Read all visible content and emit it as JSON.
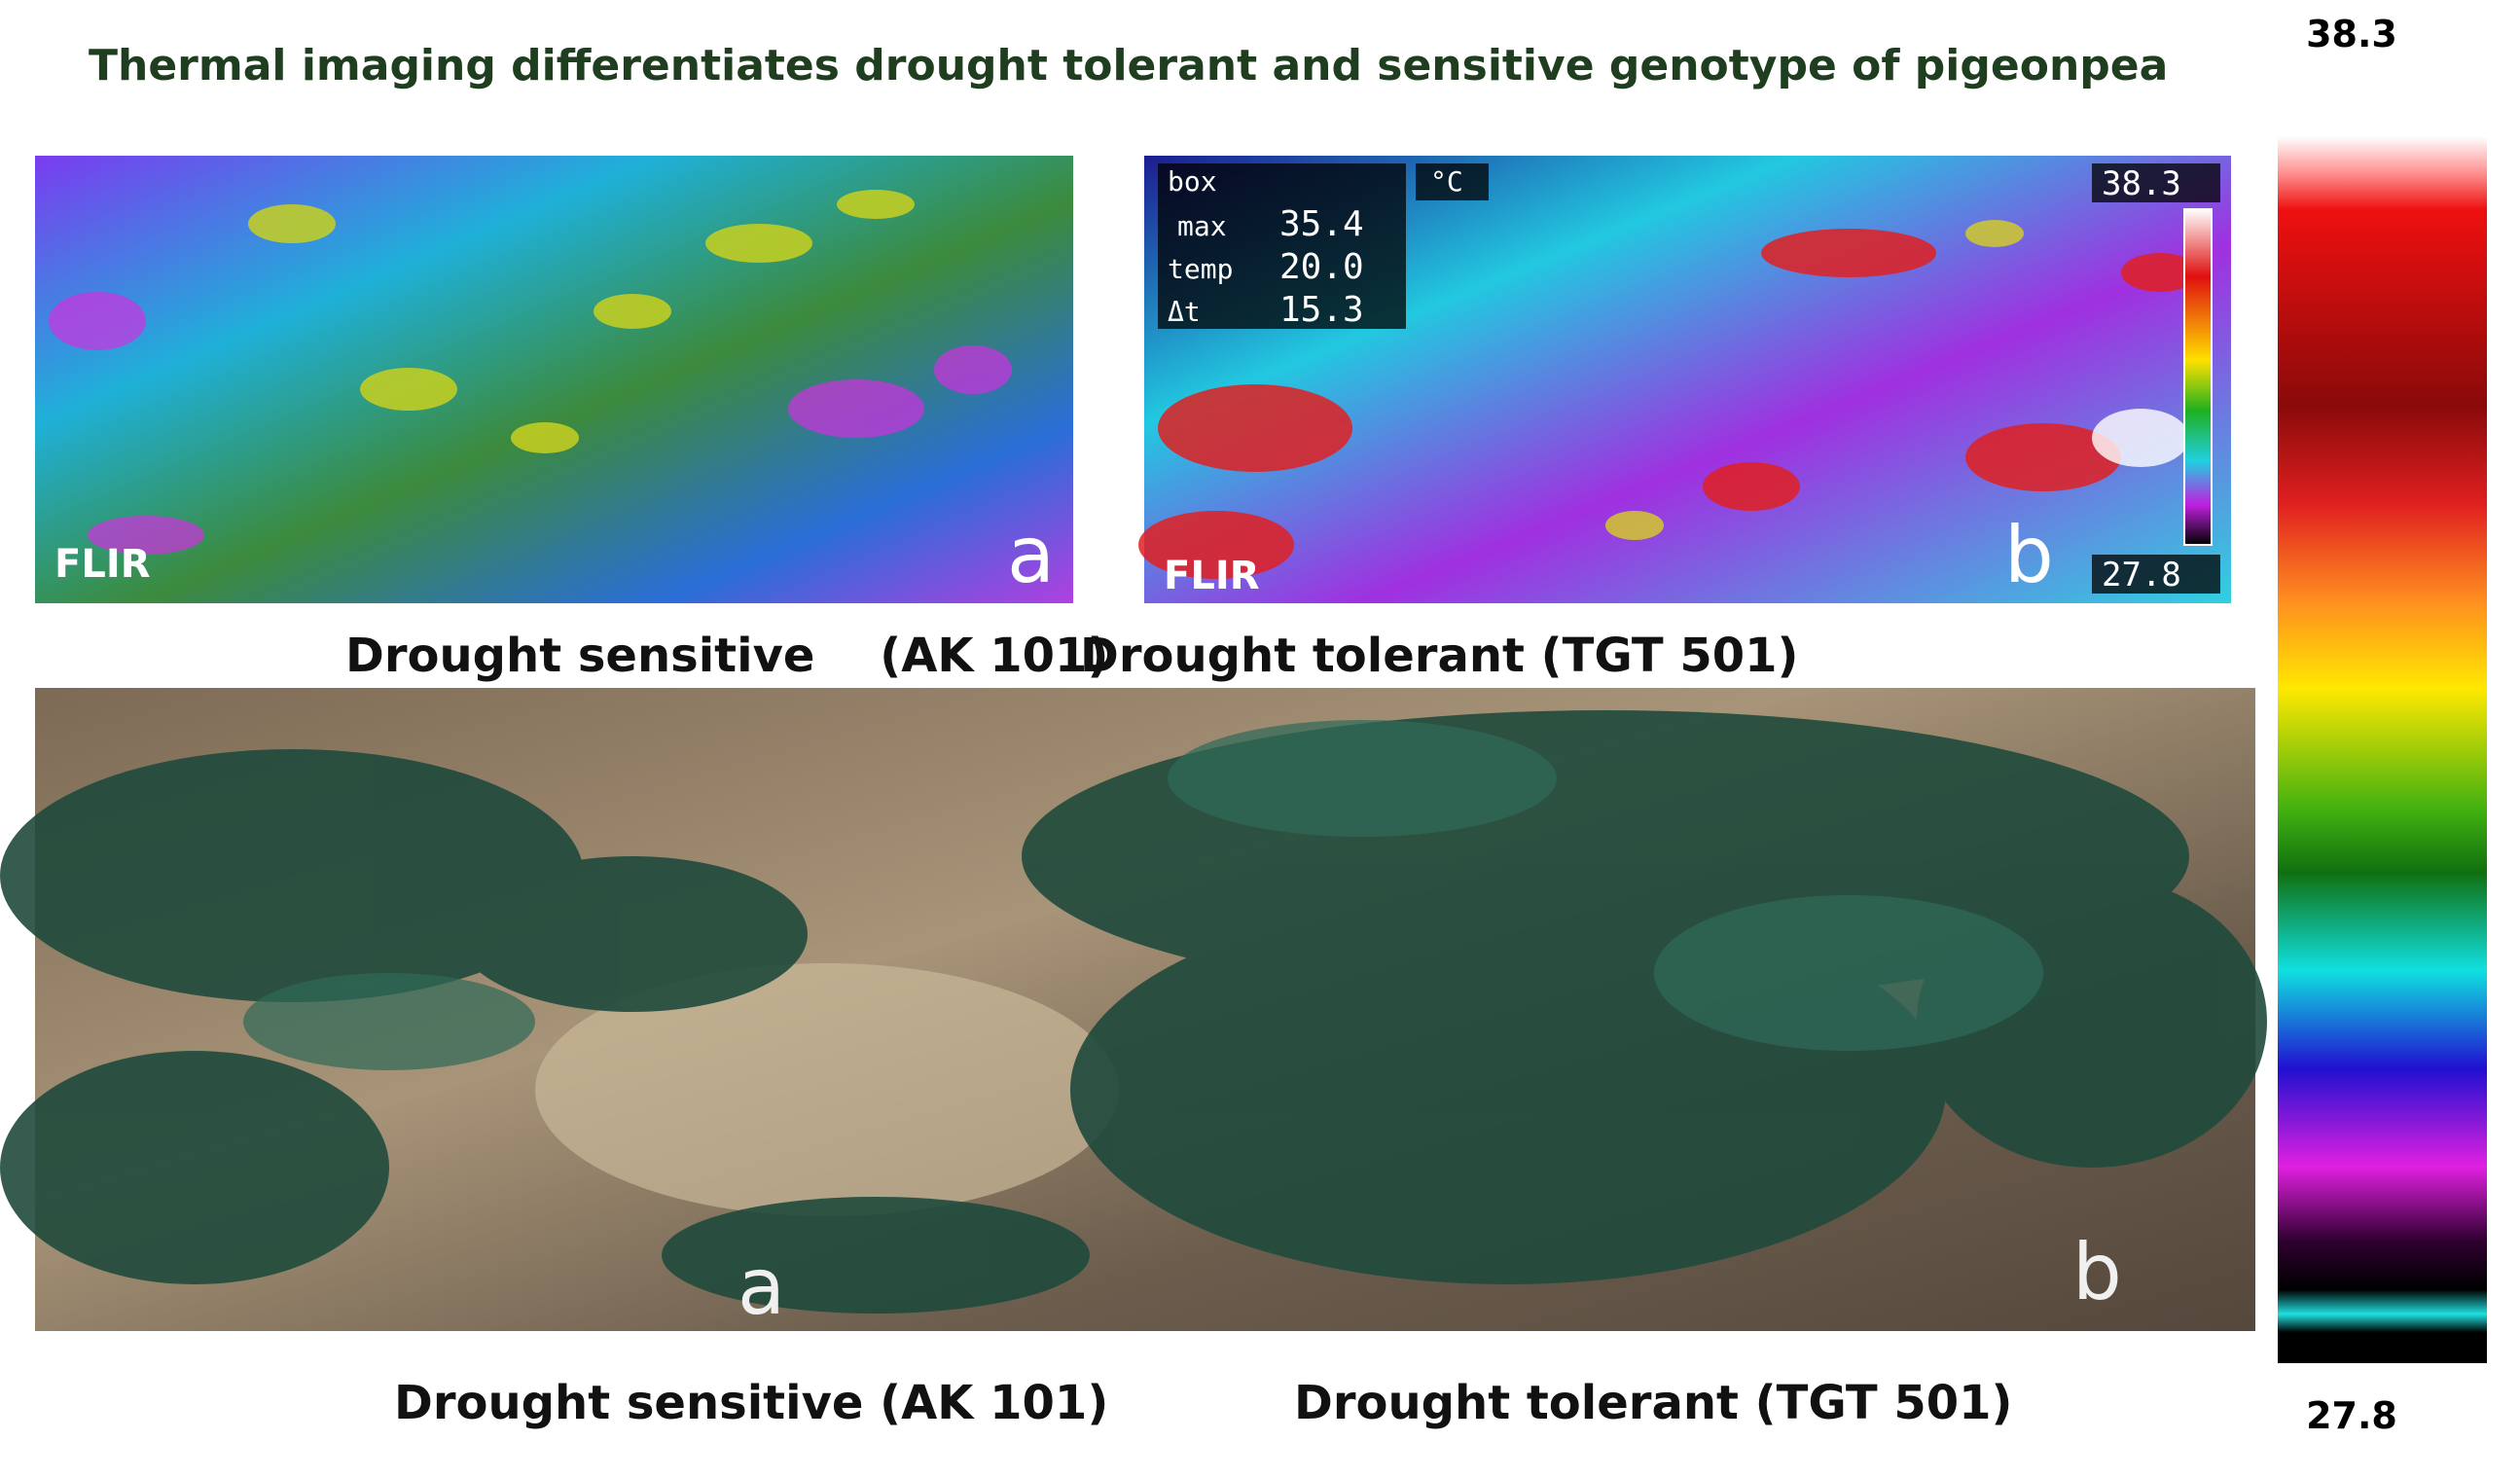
{
  "title": "Thermal imaging differentiates drought tolerant and sensitive genotype of pigeonpea",
  "thermal_images": [
    {
      "watermark": "FLIR",
      "label": "a"
    },
    {
      "readout": {
        "box": "box",
        "unit": "°C",
        "max_label": "max",
        "max": "35.4",
        "temp_label": "temp",
        "temp": "20.0",
        "dt_label": "Δt",
        "dt": "15.3",
        "scale_max": "38.3",
        "scale_min": "27.8"
      },
      "watermark": "FLIR",
      "label": "b"
    }
  ],
  "thermal_captions": [
    "Drought sensitive    (AK 101)",
    "Drought tolerant (TGT 501)"
  ],
  "photo": {
    "labels": [
      "a",
      "b"
    ]
  },
  "photo_captions": [
    "Drought sensitive (AK 101)",
    "Drought tolerant (TGT 501)"
  ],
  "color_scale": {
    "max": "38.3",
    "min": "27.8"
  }
}
